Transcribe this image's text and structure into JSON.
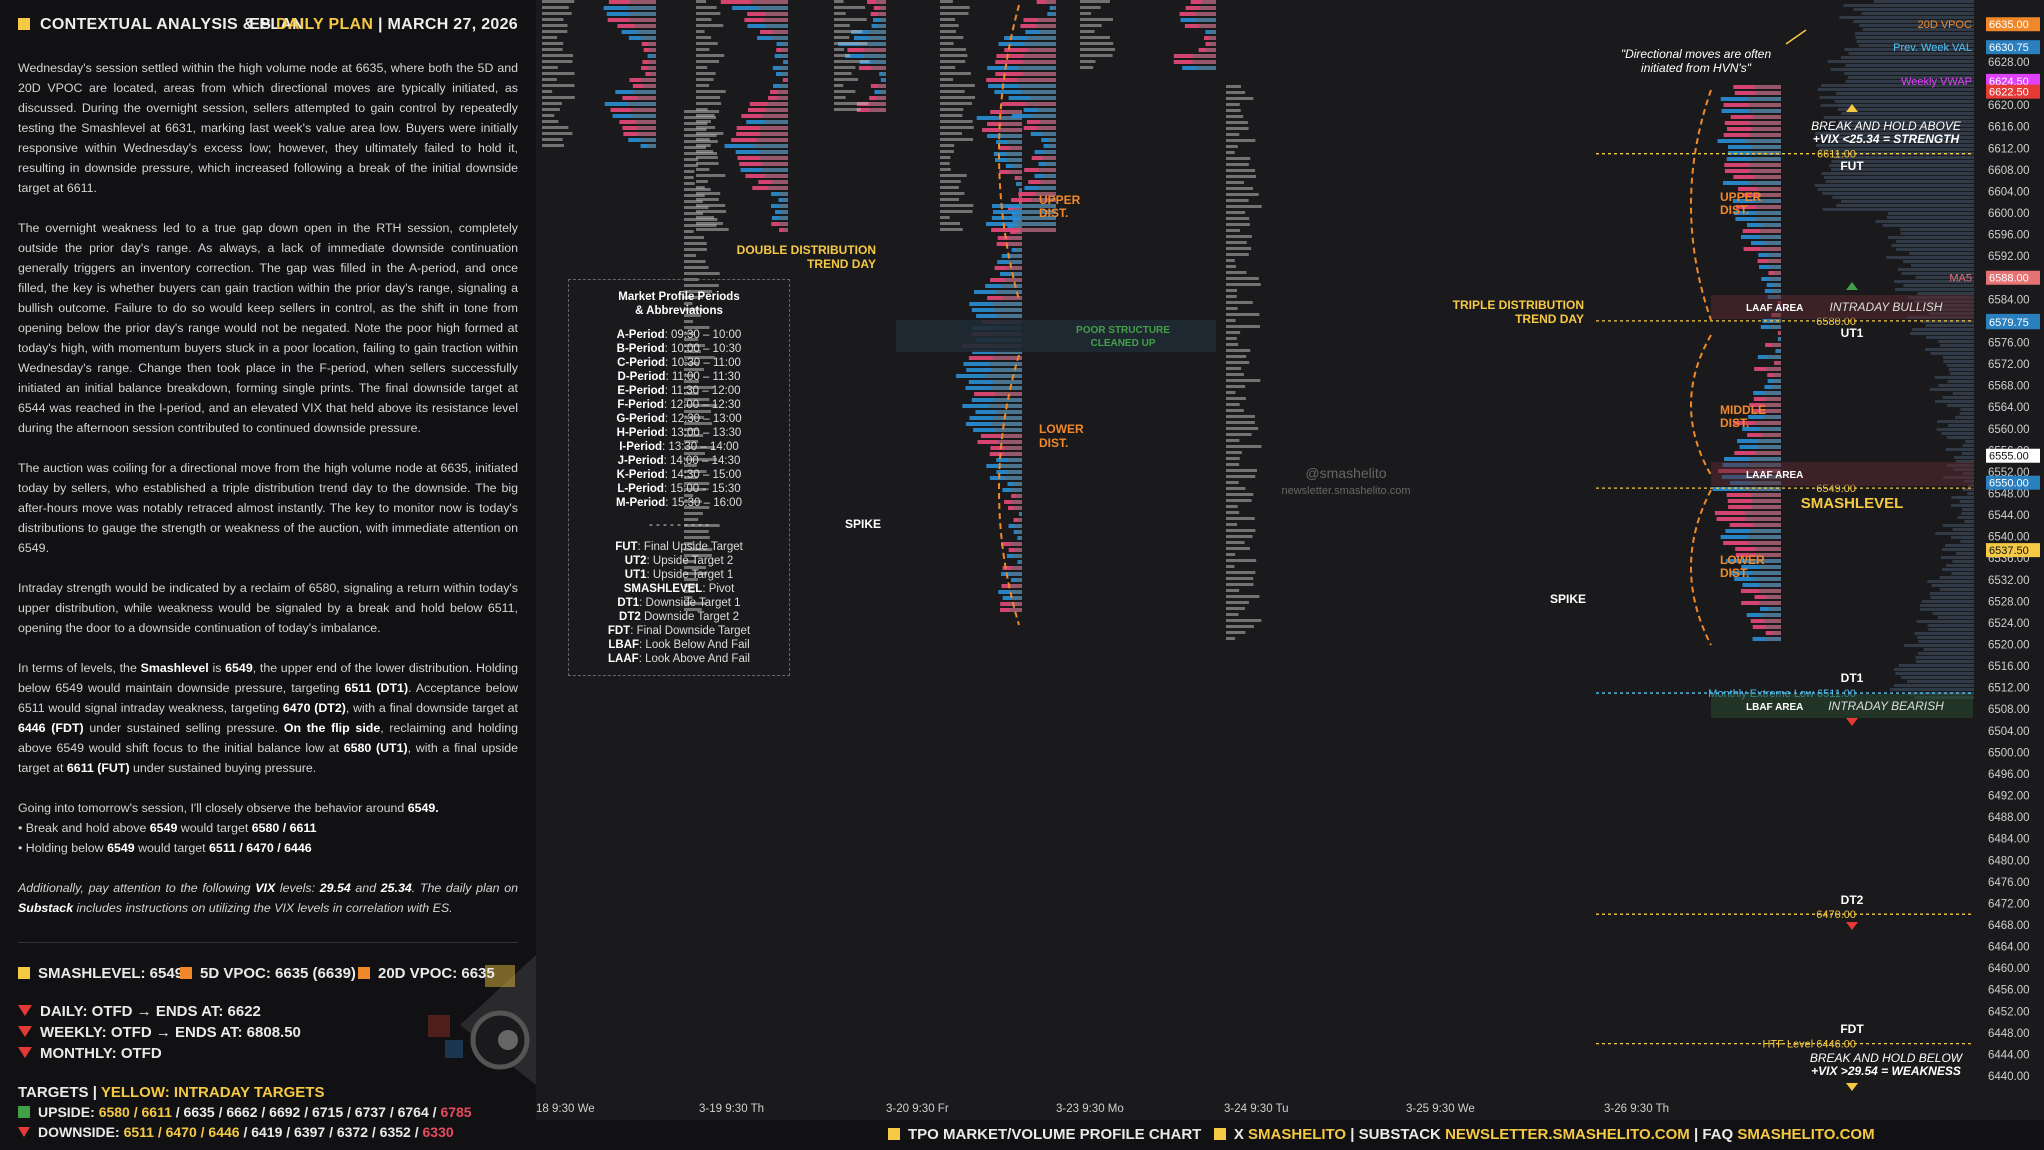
{
  "header": {
    "title": "CONTEXTUAL ANALYSIS & PLAN",
    "plan_prefix": "ES",
    "plan_label": "DAILY PLAN",
    "separator": "|",
    "date": "MARCH 27, 2026"
  },
  "analysis": {
    "p1": "Wednesday's session settled within the high volume node at 6635, where both the 5D and 20D VPOC are located, areas from which directional moves are typically initiated, as discussed. During the overnight session, sellers attempted to gain control by repeatedly testing the Smashlevel at 6631, marking last week's value area low. Buyers were initially responsive within Wednesday's excess low; however, they ultimately failed to hold it, resulting in downside pressure, which increased following a break of the initial downside target at 6611.",
    "p2": "The overnight weakness led to a true gap down open in the RTH session, completely outside the prior day's range. As always, a lack of immediate downside continuation generally triggers an inventory correction. The gap was filled in the A-period, and once filled, the key is whether buyers can gain traction within the prior day's range, signaling a bullish outcome. Failure to do so would keep sellers in control, as the shift in tone from opening below the prior day's range would not be negated. Note the poor high formed at today's high, with momentum buyers stuck in a poor location, failing to gain traction within Wednesday's range. Change then took place in the F-period, when sellers successfully initiated an initial balance breakdown, forming single prints. The final downside target at 6544 was reached in the I-period, and an elevated VIX that held above its resistance level during the afternoon session contributed to continued downside pressure.",
    "p3": "The auction was coiling for a directional move from the high volume node at 6635, initiated today by sellers, who established a triple distribution trend day to the downside. The big after-hours move was notably retraced almost instantly. The key to monitor now is today's distributions to gauge the strength or weakness of the auction, with immediate attention on 6549.",
    "p4": "Intraday strength would be indicated by a reclaim of 6580, signaling a return within today's upper distribution, while weakness would be signaled by a break and hold below 6511, opening the door to a downside continuation of today's imbalance.",
    "p5_a": "In terms of levels, the ",
    "p5_b": "Smashlevel",
    "p5_c": " is ",
    "p5_d": "6549",
    "p5_e": ", the upper end of the lower distribution. Holding below 6549 would maintain downside pressure, targeting ",
    "p5_f": "6511 (DT1)",
    "p5_g": ". Acceptance below 6511 would signal intraday weakness, targeting ",
    "p5_h": "6470 (DT2)",
    "p5_i": ", with a final downside target at ",
    "p5_j": "6446 (FDT)",
    "p5_k": " under sustained selling pressure. ",
    "p5_l": "On the flip side",
    "p5_m": ", reclaiming and holding above 6549 would shift focus to the initial balance low at ",
    "p5_n": "6580 (UT1)",
    "p5_o": ", with a final upside target at ",
    "p5_p": "6611 (FUT)",
    "p5_q": " under sustained buying pressure.",
    "p6_a": "Going into tomorrow's session, I'll closely observe the behavior around ",
    "p6_b": "6549.",
    "p6_c": "• Break and hold above ",
    "p6_d": "6549",
    "p6_e": " would target ",
    "p6_f": "6580 / 6611",
    "p6_g": "• Holding below ",
    "p6_h": "6549",
    "p6_i": " would target ",
    "p6_j": "6511 / 6470 / 6446",
    "p7_a": "Additionally, pay attention to the following ",
    "p7_b": "VIX",
    "p7_c": " levels: ",
    "p7_d": "29.54",
    "p7_e": " and ",
    "p7_f": "25.34",
    "p7_g": ". The daily plan on ",
    "p7_h": "Substack",
    "p7_i": " includes instructions on utilizing the VIX levels in correlation with ES."
  },
  "levels": {
    "smashlevel": "SMASHLEVEL: 6549",
    "vpoc5": "5D VPOC: 6635 (6639)",
    "vpoc20": "20D VPOC: 6635",
    "daily": "DAILY: OTFD",
    "daily_end": "ENDS AT: 6622",
    "weekly": "WEEKLY: OTFD",
    "weekly_end": "ENDS AT: 6808.50",
    "monthly": "MONTHLY: OTFD",
    "arrow": "→",
    "targets_label": "TARGETS",
    "targets_sep": "|",
    "targets_yellow": "YELLOW: INTRADAY TARGETS",
    "upside_label": "UPSIDE:",
    "upside_yellow": "6580 / 6611",
    "upside_rest": " / 6635 / 6662 / 6692 / 6715 / 6737 / 6764 / ",
    "upside_last": "6785",
    "downside_label": "DOWNSIDE:",
    "downside_yellow": "6511 / 6470 / 6446",
    "downside_rest": " / 6419 / 6397 / 6372 / 6352 / ",
    "downside_last": "6330",
    "square_colors": {
      "smash": "#f6c944",
      "vpoc5": "#f0882a",
      "vpoc20": "#f0882a",
      "upside": "#43a047",
      "downside": "#e53935"
    }
  },
  "footer": {
    "chart_label": "TPO MARKET/VOLUME PROFILE CHART",
    "x_label": "X",
    "x_handle": "SMASHELITO",
    "substack_label": "SUBSTACK",
    "substack_url": "NEWSLETTER.SMASHELITO.COM",
    "faq_label": "FAQ",
    "faq_url": "SMASHELITO.COM",
    "sep": "|"
  },
  "legend": {
    "title1": "Market Profile Periods",
    "title2": "& Abbreviations",
    "periods": [
      [
        "A-Period",
        ": 09:30 – 10:00"
      ],
      [
        "B-Period",
        ": 10:00 – 10:30"
      ],
      [
        "C-Period",
        ": 10:30 – 11:00"
      ],
      [
        "D-Period",
        ": 11:00 – 11:30"
      ],
      [
        "E-Period",
        ": 11:30 – 12:00"
      ],
      [
        "F-Period",
        ": 12:00 – 12:30"
      ],
      [
        "G-Period",
        ": 12:30 – 13:00"
      ],
      [
        "H-Period",
        ": 13:00 – 13:30"
      ],
      [
        "I-Period",
        ": 13:30 – 14:00"
      ],
      [
        "J-Period",
        ": 14:00 – 14:30"
      ],
      [
        "K-Period",
        ": 14:30 – 15:00"
      ],
      [
        "L-Period",
        ": 15:00 – 15:30"
      ],
      [
        "M-Period",
        ": 15:30 – 16:00"
      ]
    ],
    "dashes": "- - - - - - - - -",
    "abbr": [
      [
        "FUT",
        ": Final Upside Target"
      ],
      [
        "UT2",
        ": Upside Target 2"
      ],
      [
        "UT1",
        ": Upside Target 1"
      ],
      [
        "SMASHLEVEL",
        ": Pivot"
      ],
      [
        "DT1",
        ": Downside Target 1"
      ],
      [
        "DT2",
        " Downside Target 2"
      ],
      [
        "FDT",
        ": Final Downside Target"
      ],
      [
        "LBAF",
        ": Look Below And Fail"
      ],
      [
        "LAAF",
        ": Look Above And Fail"
      ]
    ]
  },
  "annotations": {
    "double_dist1": "DOUBLE DISTRIBUTION",
    "double_dist2": "TREND DAY",
    "triple_dist1": "TRIPLE DISTRIBUTION",
    "triple_dist2": "TREND DAY",
    "upper_dist1": "UPPER",
    "upper_dist2": "DIST.",
    "lower_dist1": "LOWER",
    "lower_dist2": "DIST.",
    "middle_dist1": "MIDDLE",
    "middle_dist2": "DIST.",
    "poor_structure1": "POOR STRUCTURE",
    "poor_structure2": "CLEANED UP",
    "spike": "SPIKE",
    "quote1": "\"Directional moves are often",
    "quote2": "initiated from HVN's\"",
    "break_above1": "BREAK AND HOLD ABOVE",
    "break_above2": "+VIX <25.34 = STRENGTH",
    "break_below1": "BREAK AND HOLD BELOW",
    "break_below2": "+VIX >29.54 = WEAKNESS",
    "fut": "FUT",
    "ut1": "UT1",
    "dt1": "DT1",
    "dt2": "DT2",
    "fdt": "FDT",
    "smashlevel": "SMASHLEVEL",
    "laaf_area": "LAAF AREA",
    "lbaf_area": "LBAF AREA",
    "intraday_bullish": "INTRADAY BULLISH",
    "intraday_bearish": "INTRADAY BEARISH",
    "watermark1": "@smashelito",
    "watermark2": "newsletter.smashelito.com",
    "lvl_6611": "6611.00",
    "lvl_6580": "6580.00",
    "lvl_6549": "6549.00",
    "lvl_6470": "6470.00",
    "htf_level": "HTF Level  6446.00",
    "monthly_extreme": "Monthly Extreme Low  6511.00"
  },
  "price_tags": {
    "vpoc20": "20D VPOC",
    "prev_week_val": "Prev. Week VAL",
    "weekly_vwap": "Weekly VWAP",
    "ma5": "MA5"
  },
  "chart_data": {
    "type": "table",
    "y_axis": {
      "ticks": [
        "6628.00",
        "6624.00",
        "6620.00",
        "6616.00",
        "6612.00",
        "6608.00",
        "6604.00",
        "6600.00",
        "6596.00",
        "6592.00",
        "6588.00",
        "6584.00",
        "6580.00",
        "6576.00",
        "6572.00",
        "6568.00",
        "6564.00",
        "6560.00",
        "6556.00",
        "6552.00",
        "6548.00",
        "6544.00",
        "6540.00",
        "6536.00",
        "6532.00",
        "6528.00",
        "6524.00",
        "6520.00",
        "6516.00",
        "6512.00",
        "6508.00",
        "6504.00",
        "6500.00",
        "6496.00",
        "6492.00",
        "6488.00",
        "6484.00",
        "6480.00",
        "6476.00",
        "6472.00",
        "6468.00",
        "6464.00",
        "6460.00",
        "6456.00",
        "6452.00",
        "6448.00",
        "6444.00",
        "6440.00"
      ],
      "range": [
        6438,
        6637
      ],
      "tagged_prices": [
        {
          "value": "6635.00",
          "color": "#f0882a"
        },
        {
          "value": "6630.75",
          "color": "#2a7fbf"
        },
        {
          "value": "6624.50",
          "color": "#e040fb"
        },
        {
          "value": "6622.50",
          "color": "#e53935"
        },
        {
          "value": "6588.00",
          "color": "#e57373"
        },
        {
          "value": "6580.00",
          "color": "#2a7fbf"
        },
        {
          "value": "6579.75",
          "color": "#2a7fbf"
        },
        {
          "value": "6555.00",
          "color": "#ffffff"
        },
        {
          "value": "6550.00",
          "color": "#2a7fbf"
        },
        {
          "value": "6537.50",
          "color": "#f6c944"
        }
      ]
    },
    "x_axis": {
      "labels": [
        "18  9:30 We",
        "3-19  9:30 Th",
        "3-20  9:30 Fr",
        "3-23  9:30 Mo",
        "3-24  9:30 Tu",
        "3-25  9:30 We",
        "3-26  9:30 Th"
      ]
    },
    "key_levels": [
      {
        "name": "FUT",
        "price": 6611
      },
      {
        "name": "UT1",
        "price": 6580
      },
      {
        "name": "SMASHLEVEL",
        "price": 6549
      },
      {
        "name": "DT1",
        "price": 6511
      },
      {
        "name": "DT2",
        "price": 6470
      },
      {
        "name": "FDT",
        "price": 6446
      }
    ]
  }
}
